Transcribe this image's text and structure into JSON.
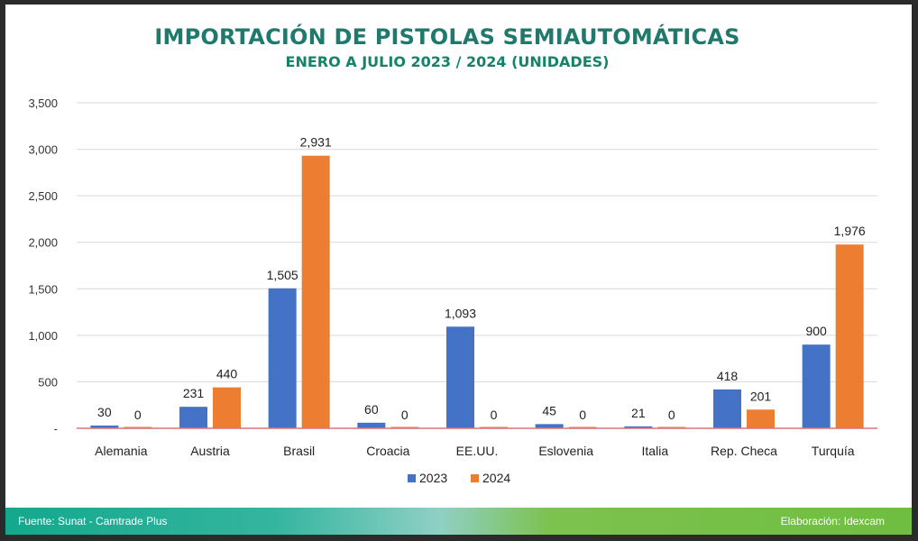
{
  "chart_data": {
    "type": "bar",
    "title": "IMPORTACIÓN DE PISTOLAS SEMIAUTOMÁTICAS",
    "subtitle": "ENERO A JULIO 2023 / 2024 (UNIDADES)",
    "categories": [
      "Alemania",
      "Austria",
      "Brasil",
      "Croacia",
      "EE.UU.",
      "Eslovenia",
      "Italia",
      "Rep. Checa",
      "Turquía"
    ],
    "series": [
      {
        "name": "2023",
        "color": "#4472c4",
        "values": [
          30,
          231,
          1505,
          60,
          1093,
          45,
          21,
          418,
          900
        ]
      },
      {
        "name": "2024",
        "color": "#ed7d31",
        "values": [
          0,
          440,
          2931,
          0,
          0,
          0,
          0,
          201,
          1976
        ]
      }
    ],
    "data_labels": [
      [
        "30",
        "231",
        "1,505",
        "60",
        "1,093",
        "45",
        "21",
        "418",
        "900"
      ],
      [
        "0",
        "440",
        "2,931",
        "0",
        "0",
        "0",
        "0",
        "201",
        "1,976"
      ]
    ],
    "ylim": [
      0,
      3500
    ],
    "yticks": [
      0,
      500,
      1000,
      1500,
      2000,
      2500,
      3000,
      3500
    ],
    "ytick_labels": [
      "-",
      "500",
      "1,000",
      "1,500",
      "2,000",
      "2,500",
      "3,000",
      "3,500"
    ],
    "grid": true,
    "legend": "bottom",
    "xlabel": "",
    "ylabel": ""
  },
  "footer": {
    "source": "Fuente: Sunat - Camtrade Plus",
    "credit": "Elaboración:  Idexcam"
  }
}
